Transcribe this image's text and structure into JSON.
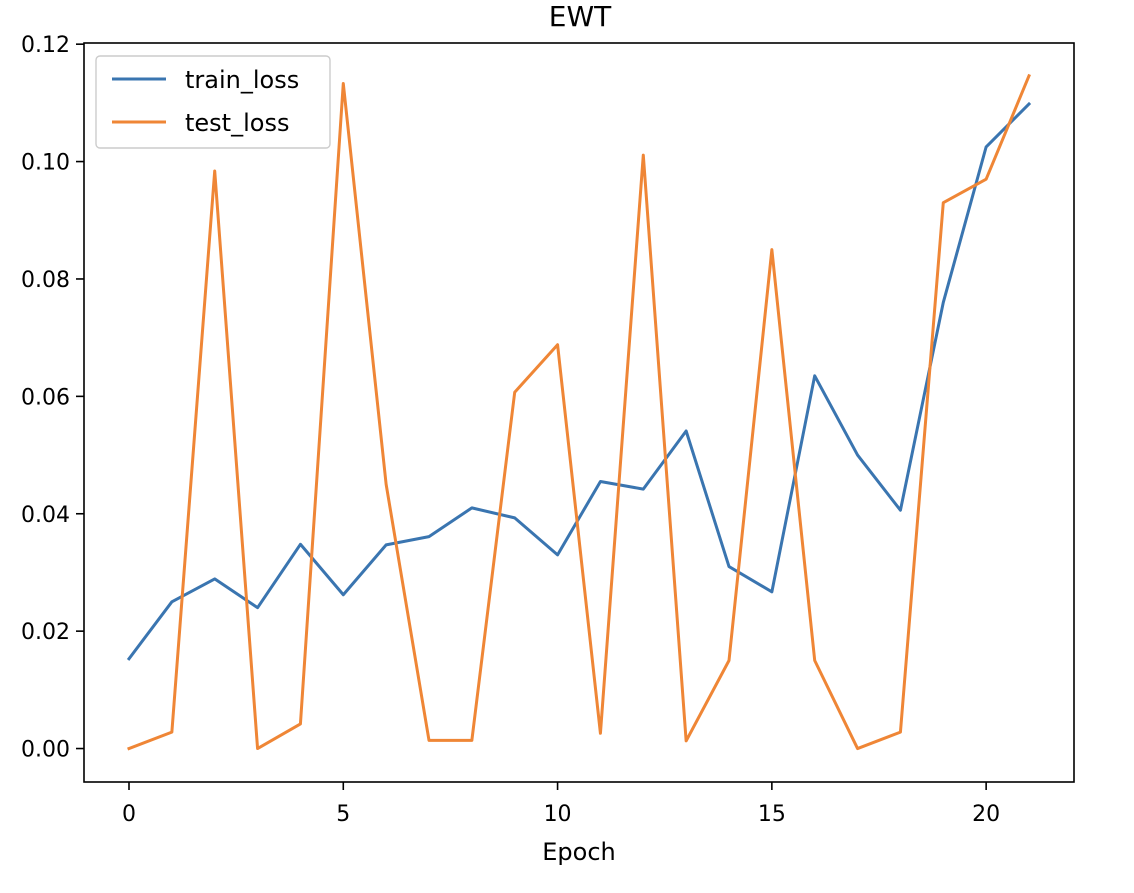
{
  "chart_data": {
    "type": "line",
    "title": "EWT",
    "xlabel": "Epoch",
    "ylabel": "",
    "x": [
      0,
      1,
      2,
      3,
      4,
      5,
      6,
      7,
      8,
      9,
      10,
      11,
      12,
      13,
      14,
      15,
      16,
      17,
      18,
      19,
      20,
      21
    ],
    "xlim": [
      -1.05,
      22.05
    ],
    "ylim": [
      -0.0057,
      0.1202
    ],
    "xticks": [
      0,
      5,
      10,
      15,
      20
    ],
    "xtick_labels": [
      "0",
      "5",
      "10",
      "15",
      "20"
    ],
    "yticks": [
      0.0,
      0.02,
      0.04,
      0.06,
      0.08,
      0.1,
      0.12
    ],
    "ytick_labels": [
      "0.00",
      "0.02",
      "0.04",
      "0.06",
      "0.08",
      "0.10",
      "0.12"
    ],
    "grid": false,
    "legend_position": "top-left",
    "series": [
      {
        "name": "train_loss",
        "color": "#3a75b0",
        "values": [
          0.0153,
          0.025,
          0.0289,
          0.024,
          0.0348,
          0.0262,
          0.0347,
          0.0361,
          0.041,
          0.0393,
          0.033,
          0.0455,
          0.0442,
          0.0541,
          0.031,
          0.0267,
          0.0635,
          0.05,
          0.0406,
          0.076,
          0.1025,
          0.1098
        ]
      },
      {
        "name": "test_loss",
        "color": "#ef8636",
        "values": [
          0.0,
          0.0028,
          0.0984,
          0.0,
          0.0042,
          0.1133,
          0.045,
          0.0014,
          0.0014,
          0.0607,
          0.0688,
          0.0026,
          0.1011,
          0.0013,
          0.015,
          0.085,
          0.015,
          0.0,
          0.0028,
          0.093,
          0.097,
          0.1146
        ]
      }
    ]
  }
}
